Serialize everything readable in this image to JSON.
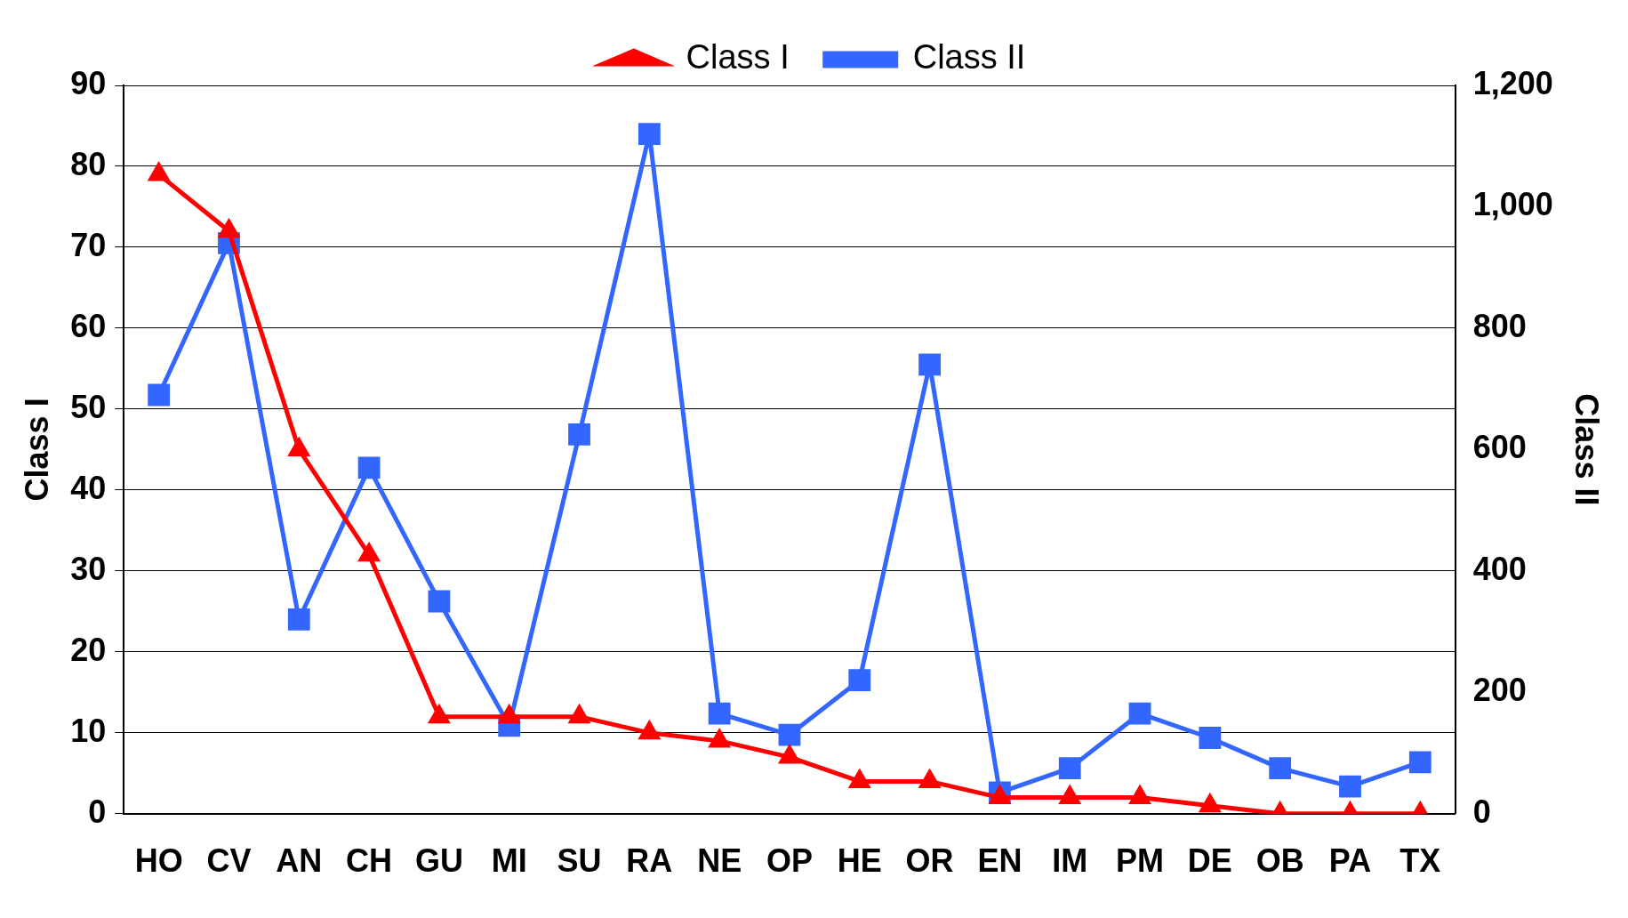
{
  "chart_data": {
    "type": "line",
    "ylabel": "Class I",
    "y2label": "Class II",
    "categories": [
      "HO",
      "CV",
      "AN",
      "CH",
      "GU",
      "MI",
      "SU",
      "RA",
      "NE",
      "OP",
      "HE",
      "OR",
      "EN",
      "IM",
      "PM",
      "DE",
      "OB",
      "PA",
      "TX"
    ],
    "series": [
      {
        "name": "Class I",
        "color": "#ff0000",
        "marker": "triangle",
        "values": [
          79,
          72,
          45,
          32,
          12,
          12,
          12,
          10,
          9,
          7,
          4,
          4,
          2,
          2,
          2,
          1,
          0,
          0,
          0
        ]
      },
      {
        "name": "Class II",
        "color": "#3366ff",
        "marker": "square",
        "axis": "y2",
        "values": [
          690,
          940,
          320,
          570,
          350,
          145,
          625,
          1120,
          165,
          130,
          220,
          740,
          35,
          75,
          165,
          125,
          75,
          45,
          85
        ]
      }
    ],
    "ylim": [
      0,
      90
    ],
    "yticks": [
      0,
      10,
      20,
      30,
      40,
      50,
      60,
      70,
      80,
      90
    ],
    "y2lim": [
      0,
      1200
    ],
    "y2ticks": [
      0,
      200,
      400,
      600,
      800,
      {
        "value": 1000,
        "label": "1,000"
      },
      {
        "value": 1200,
        "label": "1,200"
      }
    ],
    "grid": "y",
    "legend": "top",
    "line_style": "solid"
  }
}
